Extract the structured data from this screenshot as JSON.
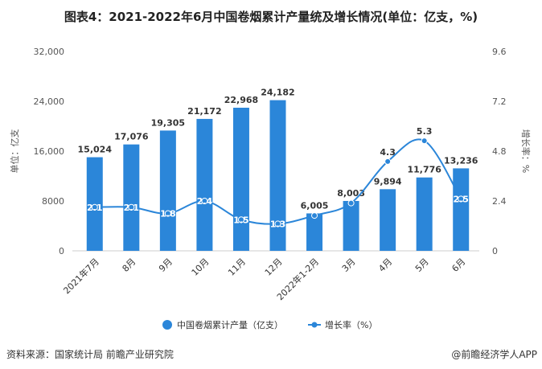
{
  "title": "图表4：2021-2022年6月中国卷烟累计产量统及增长情况(单位：亿支，%)",
  "source": "资料来源：国家统计局 前瞻产业研究院",
  "brand": "@前瞻经济学人APP",
  "chart_data": {
    "type": "bar+line",
    "categories": [
      "2021年7月",
      "8月",
      "9月",
      "10月",
      "11月",
      "12月",
      "2022年1-2月",
      "3月",
      "4月",
      "5月",
      "6月"
    ],
    "series": [
      {
        "name": "中国卷烟累计产量（亿支）",
        "type": "bar",
        "axis": "left",
        "color": "#2b86d9",
        "values": [
          15024,
          17076,
          19305,
          21172,
          22968,
          24182,
          6005,
          8003,
          9894,
          11776,
          13236
        ]
      },
      {
        "name": "增长率（%）",
        "type": "line",
        "axis": "right",
        "color": "#2b86d9",
        "values": [
          2.1,
          2.1,
          1.8,
          2.4,
          1.5,
          1.3,
          1.7,
          2.3,
          4.3,
          5.3,
          2.5
        ]
      }
    ],
    "point_labels": [
      "2.1",
      "2.1",
      "1.8",
      "2.4",
      "1.5",
      "1.3",
      "",
      "",
      "4.3",
      "5.3",
      "2.5"
    ],
    "ylabel_left": "单位：亿支",
    "ylabel_right": "增长率：%",
    "ylim_left": [
      0,
      32000
    ],
    "ylim_right": [
      0,
      9.6
    ],
    "yticks_left": [
      "0",
      "8000",
      "16,000",
      "24,000",
      "32,000"
    ],
    "yticks_right": [
      "0",
      "2.4",
      "4.8",
      "7.2",
      "9.6"
    ],
    "grid": false,
    "legend_position": "bottom"
  }
}
